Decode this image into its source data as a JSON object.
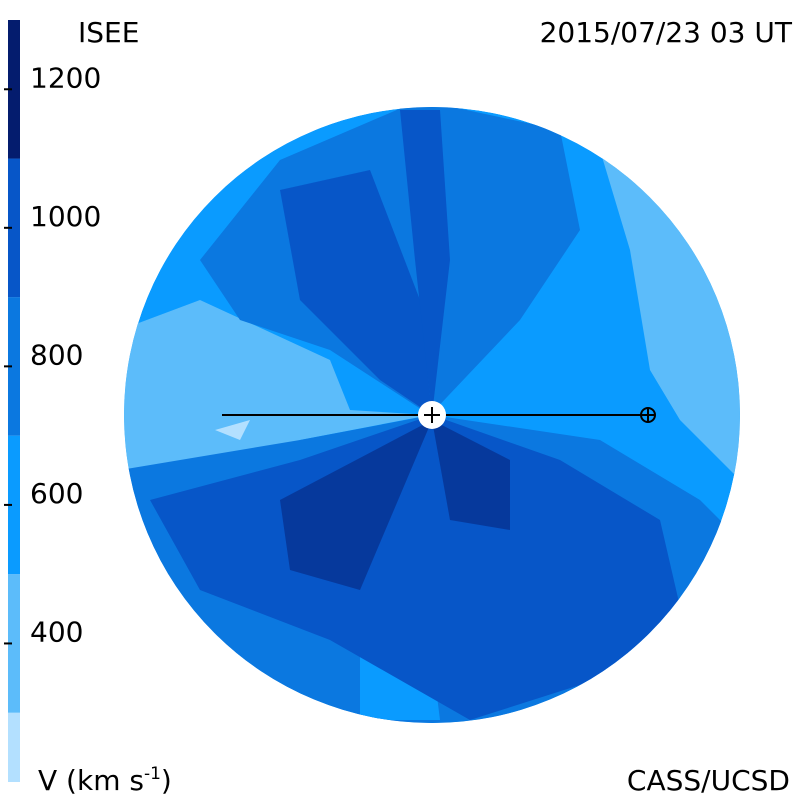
{
  "header": {
    "left": "ISEE",
    "right": "2015/07/23 03 UT"
  },
  "colorbar": {
    "lim": [
      200,
      1300
    ],
    "ticks": [
      400,
      600,
      800,
      1000,
      1200
    ],
    "bands": [
      {
        "from": 200,
        "to": 300,
        "color": "#b3e0ff"
      },
      {
        "from": 300,
        "to": 500,
        "color": "#5cbcfa"
      },
      {
        "from": 500,
        "to": 700,
        "color": "#0a9bff"
      },
      {
        "from": 700,
        "to": 900,
        "color": "#0b78e0"
      },
      {
        "from": 900,
        "to": 1100,
        "color": "#0756c8"
      },
      {
        "from": 1100,
        "to": 1300,
        "color": "#041c6e"
      }
    ],
    "label": "V (km s",
    "label_sup": "-1",
    "label_end": ")"
  },
  "footer": "CASS/UCSD"
}
